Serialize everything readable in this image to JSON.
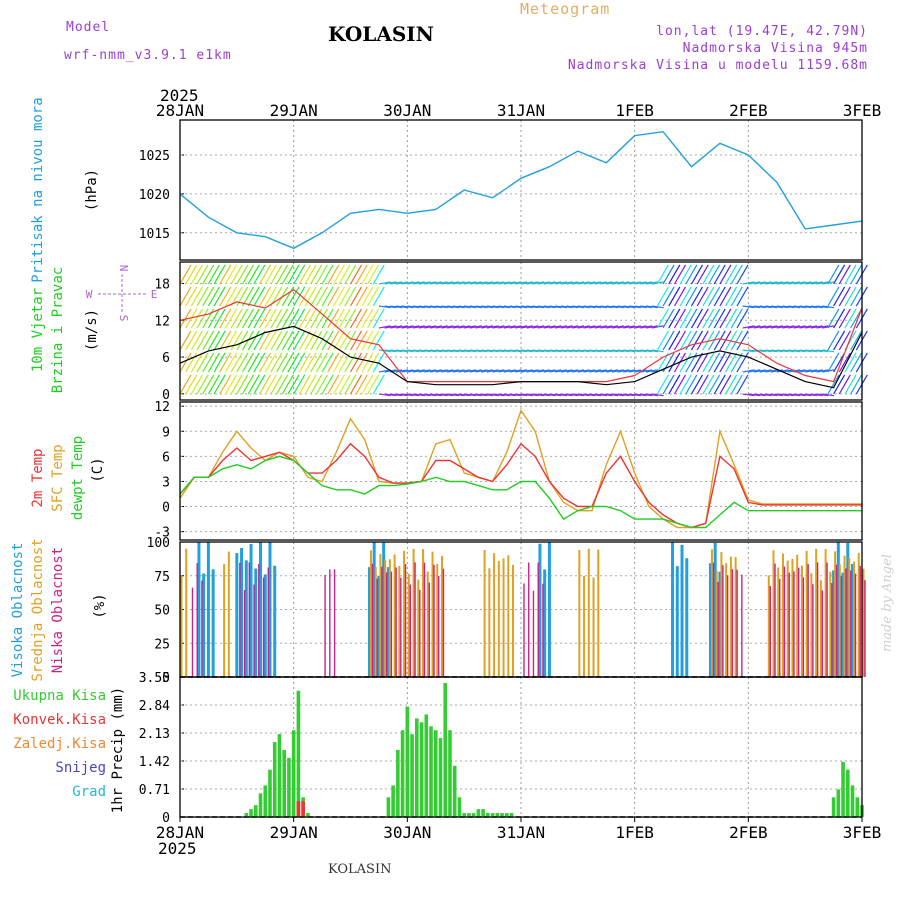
{
  "header": {
    "title": "KOLASIN",
    "meteogram": "Meteogram",
    "model_label": "Model",
    "model_name": "wrf-nmm_v3.9.1 e1km",
    "location_line1": "lon,lat (19.47E, 42.79N)",
    "location_line2": "Nadmorska Visina 945m",
    "location_line3": "Nadmorska Visina u modelu 1159.68m"
  },
  "footer": "KOLASIN",
  "credit": "made by Angel",
  "colors": {
    "pressure": "#22a0dd",
    "temp2m": "#ee3333",
    "sfc": "#e0a020",
    "dewpt": "#22cc22",
    "wind_speed": "#000000",
    "gust": "#ee3333",
    "high_cloud": "#22a0dd",
    "mid_cloud": "#e0a020",
    "low_cloud": "#cc2288",
    "total_precip": "#33cc33",
    "conv_precip": "#ee3333",
    "snow": "#4444cc"
  },
  "chart_data": [
    {
      "type": "line",
      "panel": "pressure",
      "top_year": "2025",
      "bottom_year": "2025",
      "x_ticks": [
        "28JAN",
        "29JAN",
        "30JAN",
        "31JAN",
        "1FEB",
        "2FEB",
        "3FEB"
      ],
      "ylabel_1": "Pritisak na nivou mora",
      "unit": "(hPa)",
      "yticks": [
        "1015",
        "1020",
        "1025"
      ],
      "ylim": [
        1011.5,
        1029.5
      ],
      "x_hours": [
        0,
        6,
        12,
        18,
        24,
        30,
        36,
        42,
        48,
        54,
        60,
        66,
        72,
        78,
        84,
        90,
        96,
        102,
        108,
        114,
        120,
        126,
        132,
        138,
        144
      ],
      "values": [
        1020,
        1017,
        1015,
        1014.5,
        1013,
        1015,
        1017.5,
        1018,
        1017.5,
        1018,
        1020.5,
        1019.5,
        1022,
        1023.5,
        1025.5,
        1024,
        1027.5,
        1028,
        1023.5,
        1026.5,
        1025,
        1021.5,
        1015.5,
        1016,
        1016.5
      ]
    },
    {
      "type": "line",
      "panel": "wind",
      "ylabel_1": "10m Vjetar",
      "ylabel_2": "Brzina i Pravac",
      "unit": "(m/s)",
      "compass": {
        "n": "N",
        "s": "S",
        "w": "W",
        "e": "E"
      },
      "yticks": [
        "0",
        "6",
        "12",
        "18"
      ],
      "ylim": [
        -1,
        21.5
      ],
      "x_hours": [
        0,
        6,
        12,
        18,
        24,
        30,
        36,
        42,
        48,
        54,
        60,
        66,
        72,
        78,
        84,
        90,
        96,
        102,
        108,
        114,
        120,
        126,
        132,
        138,
        144
      ],
      "speed": [
        5,
        7,
        8,
        10,
        11,
        9,
        6,
        5,
        2,
        1.5,
        1.5,
        1.5,
        2,
        2,
        2,
        1.5,
        2,
        4,
        6,
        7,
        6,
        4,
        2,
        1,
        10
      ],
      "gust": [
        12,
        13,
        15,
        14,
        17,
        13,
        9,
        8,
        2,
        2,
        2,
        2,
        2,
        2,
        2,
        2,
        3,
        6,
        8,
        9,
        8,
        5,
        3,
        2,
        14
      ]
    },
    {
      "type": "line",
      "panel": "temperature",
      "ylabel_1": "2m Temp",
      "ylabel_2": "SFC Temp",
      "ylabel_3": "dewpt Temp",
      "unit": "(C)",
      "yticks": [
        "-3",
        "0",
        "3",
        "6",
        "9",
        "12"
      ],
      "ylim": [
        -4,
        12.5
      ],
      "x_hours": [
        0,
        3,
        6,
        9,
        12,
        15,
        18,
        21,
        24,
        27,
        30,
        33,
        36,
        39,
        42,
        45,
        48,
        51,
        54,
        57,
        60,
        63,
        66,
        69,
        72,
        75,
        78,
        81,
        84,
        87,
        90,
        93,
        96,
        99,
        102,
        105,
        108,
        111,
        114,
        117,
        120,
        123,
        126,
        129,
        132,
        135,
        138,
        141,
        144
      ],
      "t2m": [
        1.5,
        3.5,
        3.5,
        5.5,
        7,
        5.5,
        6,
        6.5,
        5.5,
        4,
        4,
        5.5,
        7.5,
        6,
        3.5,
        2.8,
        2.8,
        3,
        5.5,
        5.5,
        4.5,
        3.5,
        3,
        5,
        7.5,
        6,
        3,
        1,
        0,
        0,
        4,
        6,
        3,
        0.5,
        -1,
        -2,
        -2.5,
        -2,
        6,
        4.5,
        0.5,
        0.2,
        0.2,
        0.2,
        0.2,
        0.2,
        0.2,
        0.2,
        0.2
      ],
      "sfc": [
        1,
        3.5,
        3.5,
        6.5,
        9,
        7,
        5.5,
        6.5,
        6,
        3.5,
        3,
        6.5,
        10.5,
        8,
        3,
        2.8,
        2.8,
        3,
        7.5,
        8,
        4,
        3.5,
        3,
        6.5,
        11.5,
        9,
        3,
        0.5,
        -0.5,
        -0.5,
        5,
        9,
        4,
        0,
        -1.5,
        -2.5,
        -2.5,
        -2,
        9,
        5,
        0.8,
        0.3,
        0.3,
        0.3,
        0.3,
        0.3,
        0.3,
        0.3,
        0.3
      ],
      "dewpt": [
        1.5,
        3.5,
        3.5,
        4.5,
        5,
        4.5,
        5.5,
        6,
        5.5,
        4,
        2.5,
        2,
        2,
        1.5,
        2.5,
        2.5,
        2.7,
        3,
        3.5,
        3,
        3,
        2.5,
        2,
        2,
        3,
        3,
        1,
        -1.5,
        -0.5,
        0,
        0,
        -0.5,
        -1.5,
        -1.5,
        -1.5,
        -2,
        -2.5,
        -2.5,
        -1,
        0.5,
        -0.5,
        -0.5,
        -0.5,
        -0.5,
        -0.5,
        -0.5,
        -0.5,
        -0.5,
        -0.5
      ]
    },
    {
      "type": "bar",
      "panel": "clouds",
      "ylabel_1": "Visoka Oblacnost",
      "ylabel_2": "Srednja Oblacnost",
      "ylabel_3": "Niska Oblacnost",
      "unit": "(%)",
      "yticks": [
        "0",
        "25",
        "50",
        "75",
        "100"
      ],
      "ylim": [
        0,
        100
      ],
      "series": [
        {
          "key": "high",
          "hours_covered": [
            [
              4,
              7
            ],
            [
              12,
              20
            ],
            [
              40,
              44
            ],
            [
              76,
              78
            ],
            [
              104,
              107
            ],
            [
              112,
              114
            ],
            [
              138,
              142
            ]
          ],
          "level": 100
        },
        {
          "key": "mid",
          "hours_covered": [
            [
              0,
              1
            ],
            [
              9,
              10
            ],
            [
              40,
              55
            ],
            [
              64,
              70
            ],
            [
              84,
              88
            ],
            [
              112,
              117
            ],
            [
              124,
              144
            ]
          ],
          "level": 95
        },
        {
          "key": "low",
          "hours_covered": [
            [
              2,
              4
            ],
            [
              12,
              18
            ],
            [
              30,
              32
            ],
            [
              40,
              55
            ],
            [
              72,
              76
            ],
            [
              112,
              118
            ],
            [
              124,
              144
            ]
          ],
          "level": 85
        }
      ]
    },
    {
      "type": "bar",
      "panel": "precipitation",
      "legend": [
        "Ukupna Kisa",
        "Konvek.Kisa",
        "Zaledj.Kisa",
        "Snijeg",
        "Grad"
      ],
      "unit": "1hr Precip (mm)",
      "yticks": [
        "0",
        "0.71",
        "1.42",
        "2.13",
        "2.84",
        "3.55"
      ],
      "ylim": [
        0,
        3.55
      ],
      "x_hours": [
        14,
        15,
        16,
        17,
        18,
        19,
        20,
        21,
        22,
        23,
        24,
        25,
        26,
        27,
        44,
        45,
        46,
        47,
        48,
        49,
        50,
        51,
        52,
        53,
        54,
        55,
        56,
        57,
        58,
        59,
        60,
        61,
        62,
        63,
        64,
        65,
        66,
        67,
        68,
        69,
        70,
        138,
        139,
        140,
        141,
        142,
        143,
        144
      ],
      "total": [
        0.1,
        0.2,
        0.3,
        0.6,
        0.8,
        1.2,
        1.9,
        2.1,
        1.7,
        1.5,
        2.2,
        3.2,
        0.5,
        0.1,
        0.5,
        0.8,
        1.7,
        2.2,
        2.8,
        2.1,
        2.5,
        2.4,
        2.6,
        2.3,
        2.2,
        2.0,
        3.4,
        2.2,
        1.3,
        0.5,
        0.1,
        0.1,
        0.1,
        0.2,
        0.2,
        0.1,
        0.1,
        0.1,
        0.1,
        0.1,
        0.1,
        0.5,
        0.7,
        1.4,
        1.2,
        0.8,
        0.5,
        0.3
      ]
    }
  ]
}
